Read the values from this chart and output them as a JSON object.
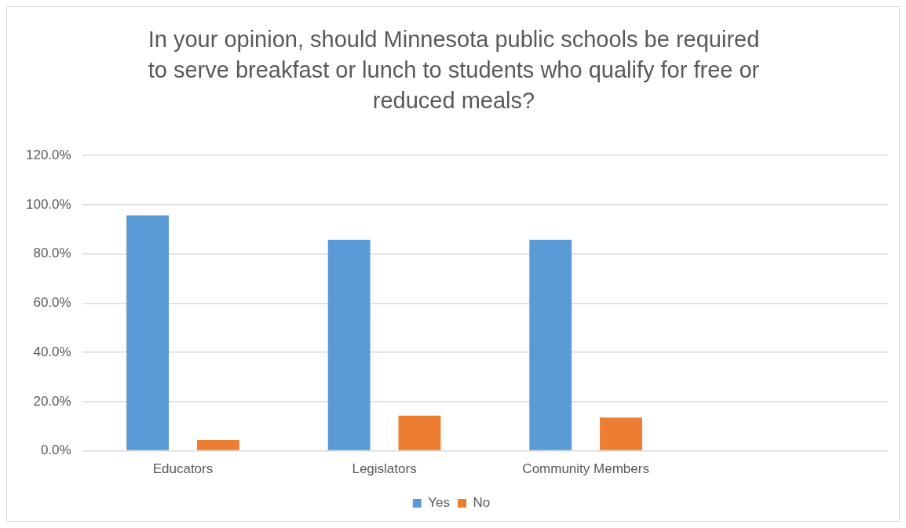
{
  "chart_data": {
    "type": "bar",
    "title": "In your opinion, should Minnesota public schools be required to serve breakfast or lunch to students who qualify for free or reduced meals?",
    "categories": [
      "Educators",
      "Legislators",
      "Community Members",
      null
    ],
    "series": [
      {
        "name": "Yes",
        "color": "#5b9bd5",
        "values": [
          95.7,
          85.7,
          85.7,
          null
        ]
      },
      {
        "name": "No",
        "color": "#ed7d31",
        "values": [
          4.3,
          14.3,
          13.5,
          null
        ]
      }
    ],
    "ylim": [
      0,
      120
    ],
    "yticks": [
      {
        "value": 0,
        "label": "0.0%"
      },
      {
        "value": 20,
        "label": "20.0%"
      },
      {
        "value": 40,
        "label": "40.0%"
      },
      {
        "value": 60,
        "label": "60.0%"
      },
      {
        "value": 80,
        "label": "80.0%"
      },
      {
        "value": 100,
        "label": "100.0%"
      },
      {
        "value": 120,
        "label": "120.0%"
      }
    ],
    "grid": "y",
    "legend": "bottom"
  }
}
